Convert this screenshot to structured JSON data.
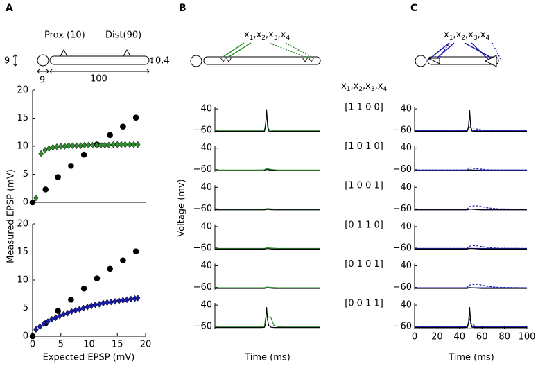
{
  "panel_labels": [
    "A",
    "B",
    "C"
  ],
  "diagram_A": {
    "prox": "Prox (10)",
    "dist": "Dist(90)",
    "soma_diameter": "9",
    "dend_diameter": "0.4",
    "soma_length": "9",
    "dend_length": "100"
  },
  "synapse_label": {
    "symbol": "x",
    "indices": [
      "1",
      "2",
      "3",
      "4"
    ],
    "separator": ","
  },
  "patterns": [
    "[1 1 0 0]",
    "[1 0 1 0]",
    "[1 0 0 1]",
    "[0 1 1 0]",
    "[0 1 0 1]",
    "[0 0 1 1]"
  ],
  "chart_data": [
    {
      "type": "scatter",
      "y_label": "Measured EPSP (mV)",
      "xlim": [
        0,
        20
      ],
      "ylim": [
        0,
        20
      ],
      "yticks": [
        0,
        5,
        10,
        15,
        20
      ],
      "series": [
        {
          "color": "#000000",
          "marker": "circle",
          "x": [
            0,
            2.3,
            4.5,
            6.8,
            9.1,
            11.4,
            13.7,
            16,
            18.3
          ],
          "values": [
            0,
            2.3,
            4.5,
            6.5,
            8.5,
            10.3,
            12,
            13.5,
            15.1
          ]
        },
        {
          "color": "#2e8b2e",
          "marker": "diamond",
          "x": [
            0.6,
            1.5,
            2.2,
            2.9,
            3.6,
            4.3,
            5.0,
            5.7,
            6.4,
            7.1,
            7.8,
            8.5,
            9.2,
            9.9,
            10.6,
            11.4,
            12.1,
            12.8,
            13.5,
            14.3,
            15.0,
            15.7,
            16.4,
            17.2,
            17.9,
            18.6
          ],
          "values": [
            0.8,
            8.7,
            9.3,
            9.6,
            9.8,
            9.9,
            10,
            10,
            10.1,
            10.1,
            10.1,
            10.1,
            10.2,
            10.2,
            10.2,
            10.2,
            10.2,
            10.2,
            10.2,
            10.3,
            10.3,
            10.3,
            10.3,
            10.3,
            10.3,
            10.3
          ]
        }
      ]
    },
    {
      "type": "scatter",
      "x_label": "Expected EPSP (mV)",
      "xlim": [
        0,
        20
      ],
      "ylim": [
        0,
        20
      ],
      "xticks": [
        0,
        5,
        10,
        15,
        20
      ],
      "yticks": [
        0,
        5,
        10,
        15,
        20
      ],
      "series": [
        {
          "color": "#000000",
          "marker": "circle",
          "x": [
            0,
            2.3,
            4.5,
            6.8,
            9.1,
            11.4,
            13.7,
            16,
            18.3
          ],
          "values": [
            0,
            2.3,
            4.5,
            6.5,
            8.5,
            10.3,
            12,
            13.5,
            15.1
          ]
        },
        {
          "color": "#1a1aa8",
          "marker": "diamond",
          "x": [
            0.6,
            1.3,
            2.0,
            2.7,
            3.4,
            4.1,
            4.8,
            5.5,
            6.2,
            6.9,
            7.6,
            8.3,
            9.0,
            9.7,
            10.4,
            11.1,
            11.8,
            12.5,
            13.2,
            13.9,
            14.6,
            15.3,
            16.0,
            16.7,
            17.4,
            18.1,
            18.6
          ],
          "values": [
            1.2,
            1.7,
            2.2,
            2.6,
            3.0,
            3.3,
            3.6,
            3.9,
            4.1,
            4.4,
            4.6,
            4.8,
            5.0,
            5.2,
            5.4,
            5.6,
            5.7,
            5.9,
            6.0,
            6.1,
            6.2,
            6.3,
            6.4,
            6.5,
            6.6,
            6.7,
            6.8
          ]
        }
      ]
    },
    {
      "type": "traces",
      "y_label": "Voltage (mv)",
      "x_label": "Time (ms)",
      "xlim": [
        0,
        100
      ],
      "ylim": [
        -70,
        50
      ],
      "yticks": [
        40,
        {
          "value": -60,
          "label": "−60"
        }
      ],
      "x": [
        0,
        44,
        47,
        48,
        49,
        50,
        51,
        53,
        56,
        60,
        66,
        75,
        100
      ],
      "panels": [
        {
          "series": [
            {
              "color": "#2e8b2e",
              "values": [
                -62,
                -62,
                -60,
                -30,
                15,
                -30,
                -55,
                -60,
                -62,
                -62,
                -62,
                -62,
                -62
              ]
            },
            {
              "color": "#000000",
              "values": [
                -65,
                -65,
                -65,
                -40,
                38,
                -40,
                -63,
                -65,
                -65,
                -65,
                -65,
                -65,
                -65
              ]
            }
          ]
        },
        {
          "series": [
            {
              "color": "#2e8b2e",
              "values": [
                -62,
                -62,
                -61,
                -58,
                -56,
                -56,
                -57,
                -59,
                -61,
                -62,
                -62,
                -62,
                -62
              ]
            },
            {
              "color": "#000000",
              "values": [
                -65,
                -65,
                -65,
                -62,
                -60,
                -60,
                -61,
                -63,
                -64,
                -65,
                -65,
                -65,
                -65
              ]
            }
          ]
        },
        {
          "series": [
            {
              "color": "#2e8b2e",
              "values": [
                -62,
                -62,
                -62,
                -60,
                -59,
                -59,
                -59,
                -60,
                -61,
                -62,
                -62,
                -62,
                -62
              ]
            },
            {
              "color": "#000000",
              "values": [
                -65,
                -65,
                -65,
                -64,
                -63,
                -63,
                -63,
                -64,
                -65,
                -65,
                -65,
                -65,
                -65
              ]
            }
          ]
        },
        {
          "series": [
            {
              "color": "#2e8b2e",
              "values": [
                -62,
                -62,
                -62,
                -60,
                -59,
                -59,
                -59,
                -60,
                -61,
                -62,
                -62,
                -62,
                -62
              ]
            },
            {
              "color": "#000000",
              "values": [
                -65,
                -65,
                -65,
                -64,
                -63,
                -63,
                -63,
                -64,
                -65,
                -65,
                -65,
                -65,
                -65
              ]
            }
          ]
        },
        {
          "series": [
            {
              "color": "#2e8b2e",
              "values": [
                -62,
                -62,
                -62,
                -60,
                -59,
                -59,
                -59,
                -60,
                -61,
                -62,
                -62,
                -62,
                -62
              ]
            },
            {
              "color": "#000000",
              "values": [
                -65,
                -65,
                -65,
                -64,
                -63,
                -63,
                -63,
                -64,
                -65,
                -65,
                -65,
                -65,
                -65
              ]
            }
          ]
        },
        {
          "series": [
            {
              "color": "#2e8b2e",
              "values": [
                -62,
                -62,
                -60,
                -20,
                -15,
                -15,
                -15,
                -17,
                -55,
                -61,
                -62,
                -62,
                -62
              ]
            },
            {
              "color": "#000000",
              "values": [
                -65,
                -65,
                -64,
                -50,
                30,
                -30,
                -55,
                -63,
                -65,
                -65,
                -65,
                -65,
                -65
              ]
            }
          ]
        }
      ]
    },
    {
      "type": "traces",
      "x_label": "Time (ms)",
      "xlim": [
        0,
        100
      ],
      "ylim": [
        -70,
        50
      ],
      "yticks": [
        40,
        {
          "value": -60,
          "label": "−60"
        }
      ],
      "xticks": [
        0,
        20,
        40,
        60,
        80,
        100
      ],
      "x": [
        0,
        44,
        47,
        48,
        49,
        50,
        51,
        53,
        56,
        60,
        66,
        75,
        100
      ],
      "panels": [
        {
          "series": [
            {
              "color": "#1a1aa8",
              "values": [
                -62,
                -62,
                -60,
                -40,
                20,
                -40,
                -58,
                -61,
                -62,
                -62,
                -62,
                -62,
                -62
              ]
            },
            {
              "color": "#1a1aa8",
              "dashed": true,
              "values": [
                -62,
                -62,
                -58,
                -52,
                -47,
                -46,
                -47,
                -50,
                -55,
                -58,
                -61,
                -62,
                -62
              ]
            },
            {
              "color": "#000000",
              "values": [
                -65,
                -65,
                -64,
                -45,
                35,
                -45,
                -63,
                -65,
                -65,
                -65,
                -65,
                -65,
                -65
              ]
            }
          ]
        },
        {
          "series": [
            {
              "color": "#1a1aa8",
              "values": [
                -62,
                -62,
                -62,
                -62,
                -62,
                -62,
                -62,
                -62,
                -62,
                -62,
                -62,
                -62,
                -62
              ]
            },
            {
              "color": "#1a1aa8",
              "dashed": true,
              "values": [
                -62,
                -62,
                -60,
                -56,
                -53,
                -53,
                -54,
                -55,
                -56,
                -58,
                -61,
                -62,
                -62
              ]
            },
            {
              "color": "#000000",
              "values": [
                -65,
                -65,
                -65,
                -63,
                -61,
                -61,
                -62,
                -63,
                -64,
                -65,
                -65,
                -65,
                -65
              ]
            }
          ]
        },
        {
          "series": [
            {
              "color": "#1a1aa8",
              "values": [
                -62,
                -62,
                -62,
                -62,
                -62,
                -62,
                -62,
                -62,
                -62,
                -62,
                -62,
                -62,
                -62
              ]
            },
            {
              "color": "#1a1aa8",
              "dashed": true,
              "values": [
                -62,
                -62,
                -60,
                -54,
                -50,
                -48,
                -47,
                -46,
                -46,
                -50,
                -56,
                -60,
                -62
              ]
            },
            {
              "color": "#000000",
              "values": [
                -65,
                -65,
                -65,
                -63,
                -61,
                -61,
                -62,
                -63,
                -64,
                -65,
                -65,
                -65,
                -65
              ]
            }
          ]
        },
        {
          "series": [
            {
              "color": "#1a1aa8",
              "values": [
                -62,
                -62,
                -62,
                -62,
                -62,
                -62,
                -62,
                -62,
                -62,
                -62,
                -62,
                -62,
                -62
              ]
            },
            {
              "color": "#1a1aa8",
              "dashed": true,
              "values": [
                -62,
                -62,
                -60,
                -55,
                -52,
                -50,
                -49,
                -49,
                -50,
                -53,
                -58,
                -61,
                -62
              ]
            },
            {
              "color": "#000000",
              "values": [
                -65,
                -65,
                -65,
                -63,
                -62,
                -62,
                -62,
                -63,
                -64,
                -65,
                -65,
                -65,
                -65
              ]
            }
          ]
        },
        {
          "series": [
            {
              "color": "#1a1aa8",
              "values": [
                -62,
                -62,
                -62,
                -62,
                -62,
                -62,
                -62,
                -62,
                -62,
                -62,
                -62,
                -62,
                -62
              ]
            },
            {
              "color": "#1a1aa8",
              "dashed": true,
              "values": [
                -62,
                -62,
                -60,
                -54,
                -50,
                -48,
                -47,
                -46,
                -46,
                -50,
                -56,
                -60,
                -62
              ]
            },
            {
              "color": "#000000",
              "values": [
                -65,
                -65,
                -65,
                -63,
                -61,
                -61,
                -62,
                -63,
                -64,
                -65,
                -65,
                -65,
                -65
              ]
            }
          ]
        },
        {
          "series": [
            {
              "color": "#1a1aa8",
              "values": [
                -62,
                -62,
                -60,
                -40,
                10,
                -40,
                -58,
                -61,
                -62,
                -62,
                -62,
                -62,
                -62
              ]
            },
            {
              "color": "#1a1aa8",
              "dashed": true,
              "values": [
                -62,
                -62,
                -58,
                -50,
                -20,
                -40,
                -50,
                -55,
                -60,
                -61,
                -62,
                -62,
                -62
              ]
            },
            {
              "color": "#000000",
              "values": [
                -65,
                -65,
                -64,
                -45,
                30,
                -45,
                -63,
                -65,
                -65,
                -65,
                -65,
                -65,
                -65
              ]
            }
          ]
        }
      ]
    }
  ]
}
